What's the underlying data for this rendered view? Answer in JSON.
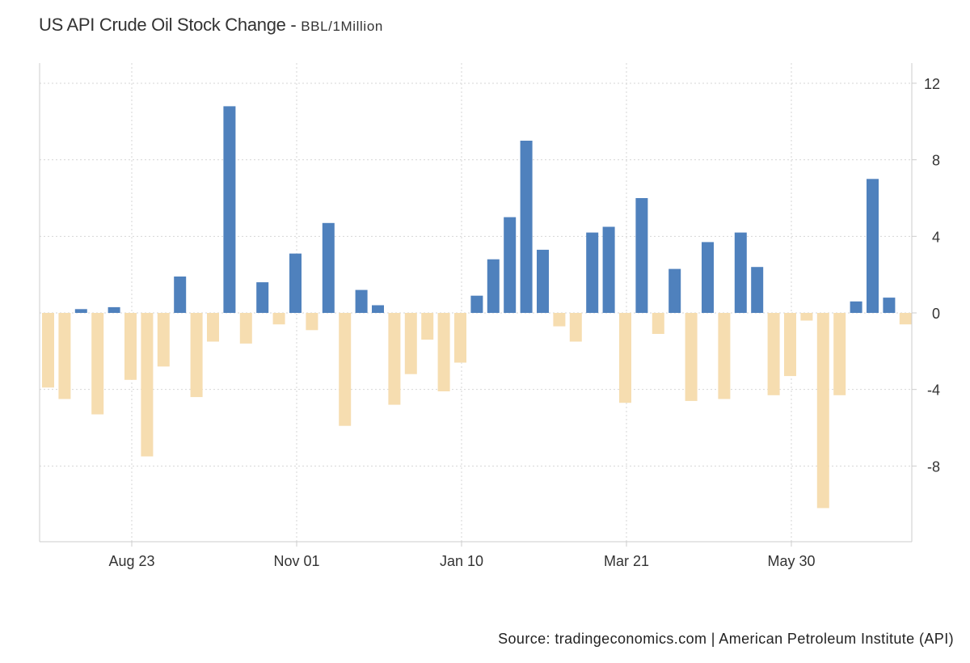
{
  "chart_data": {
    "type": "bar",
    "title": "US API Crude Oil Stock Change",
    "unit": "BBL/1Million",
    "ylim": [
      -12,
      13
    ],
    "yticks": [
      12,
      8,
      4,
      0,
      -4,
      -8
    ],
    "y_axis_position": "right",
    "grid": true,
    "xtick_labels": [
      {
        "label": "Aug 23",
        "index": 5
      },
      {
        "label": "Nov 01",
        "index": 15
      },
      {
        "label": "Jan 10",
        "index": 25
      },
      {
        "label": "Mar 21",
        "index": 35
      },
      {
        "label": "May 30",
        "index": 45
      }
    ],
    "values": [
      -3.9,
      -4.5,
      0.2,
      -5.3,
      0.3,
      -3.5,
      -7.5,
      -2.8,
      1.9,
      -4.4,
      -1.5,
      10.8,
      -1.6,
      1.6,
      -0.6,
      3.1,
      -0.9,
      4.7,
      -5.9,
      1.2,
      0.4,
      -4.8,
      -3.2,
      -1.4,
      -4.1,
      -2.6,
      0.9,
      2.8,
      5.0,
      9.0,
      3.3,
      -0.7,
      -1.5,
      4.2,
      4.5,
      -4.7,
      6.0,
      -1.1,
      2.3,
      -4.6,
      3.7,
      -4.5,
      4.2,
      2.4,
      -4.3,
      -3.3,
      -0.4,
      -10.2,
      -4.3,
      0.6,
      7.0,
      0.8,
      -0.6
    ],
    "colors": {
      "positive": "#4f81bd",
      "negative": "#f6ddb0"
    }
  },
  "source": "Source: tradingeconomics.com | American Petroleum Institute (API)"
}
